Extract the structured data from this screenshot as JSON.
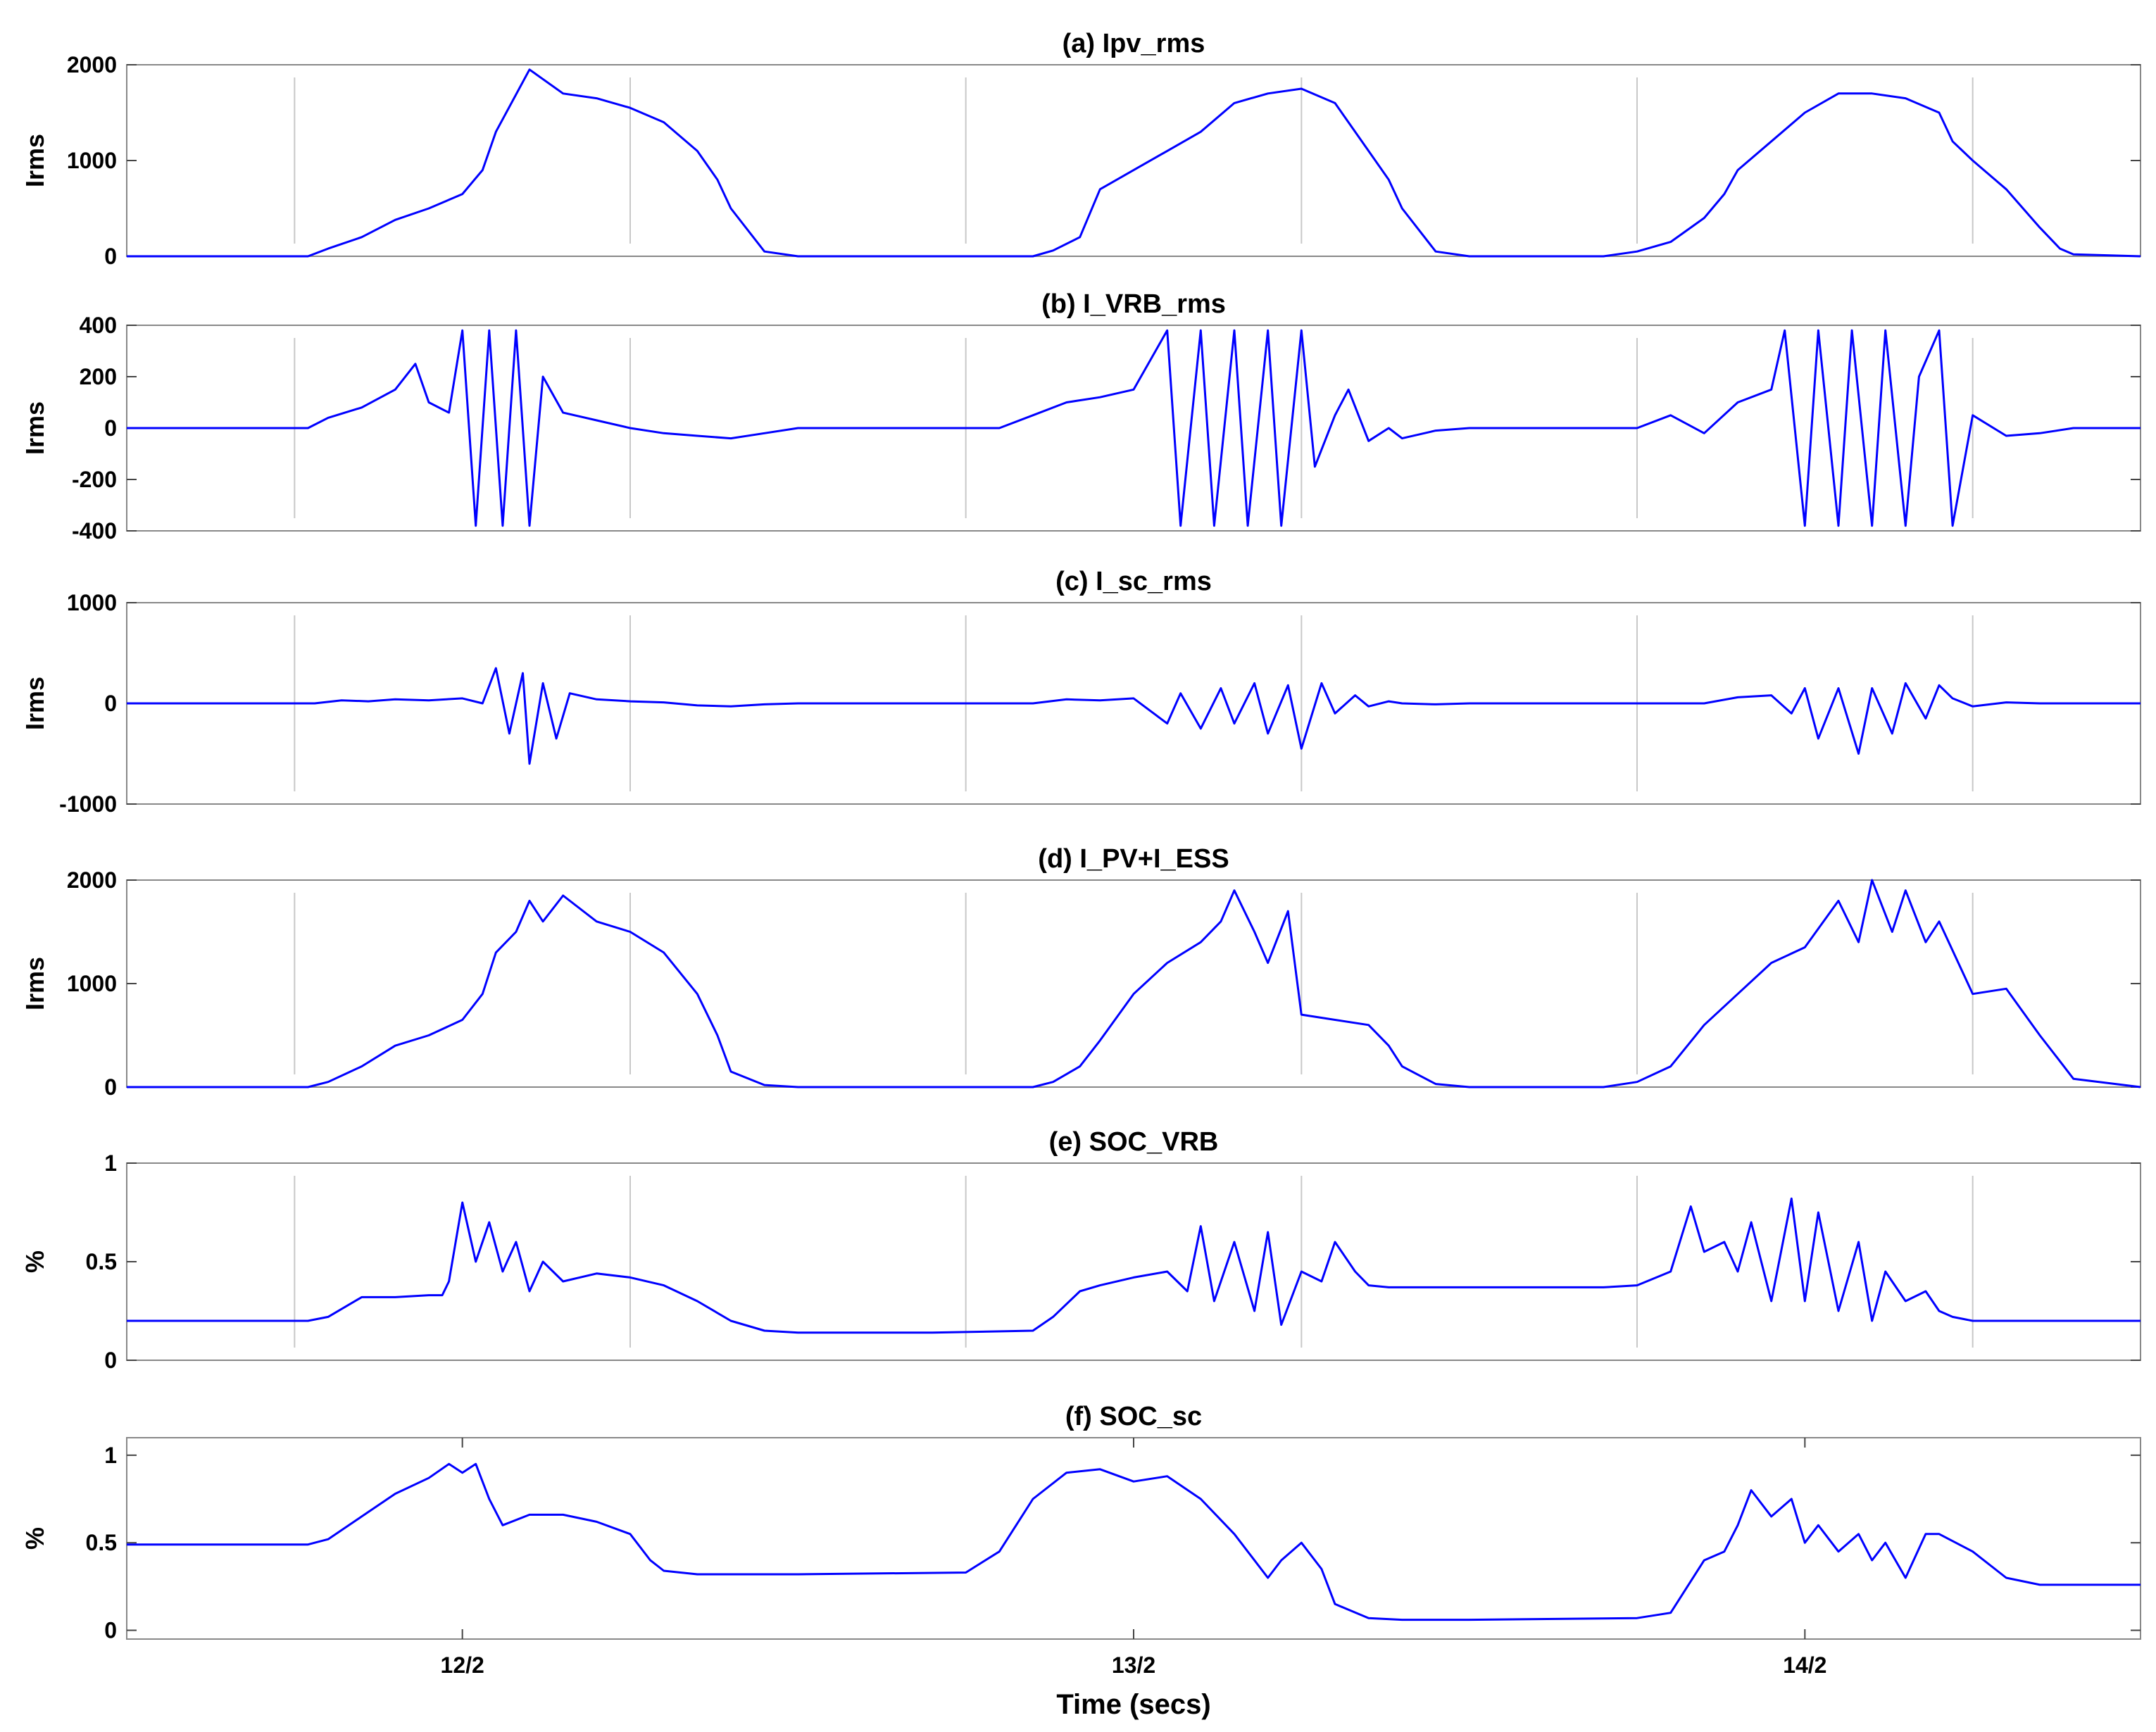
{
  "chart_data": [
    {
      "type": "line",
      "title": "(a) Ipv_rms",
      "ylabel": "Irms",
      "ylim": [
        0,
        2000
      ],
      "yticks": [
        "0",
        "1000",
        "2000"
      ],
      "xlim": [
        0,
        3
      ],
      "grid_x": [
        0.25,
        0.75,
        1.25,
        1.75,
        2.25,
        2.75
      ],
      "color": "#0000ff",
      "series": [
        {
          "x": [
            0,
            0.27,
            0.3,
            0.35,
            0.4,
            0.45,
            0.5,
            0.53,
            0.55,
            0.6,
            0.65,
            0.7,
            0.75,
            0.8,
            0.85,
            0.88,
            0.9,
            0.95,
            1.0,
            1.35,
            1.38,
            1.42,
            1.45,
            1.5,
            1.55,
            1.6,
            1.65,
            1.7,
            1.75,
            1.8,
            1.85,
            1.88,
            1.9,
            1.95,
            2.0,
            2.2,
            2.25,
            2.3,
            2.35,
            2.38,
            2.4,
            2.45,
            2.5,
            2.55,
            2.6,
            2.65,
            2.7,
            2.72,
            2.75,
            2.8,
            2.85,
            2.88,
            2.9,
            3.0
          ],
          "y": [
            0,
            0,
            80,
            200,
            380,
            500,
            650,
            900,
            1300,
            1950,
            1700,
            1650,
            1550,
            1400,
            1100,
            800,
            500,
            50,
            0,
            0,
            60,
            200,
            700,
            900,
            1100,
            1300,
            1600,
            1700,
            1750,
            1600,
            1100,
            800,
            500,
            50,
            0,
            0,
            50,
            150,
            400,
            650,
            900,
            1200,
            1500,
            1700,
            1700,
            1650,
            1500,
            1200,
            1000,
            700,
            300,
            80,
            20,
            0
          ]
        }
      ]
    },
    {
      "type": "line",
      "title": "(b) I_VRB_rms",
      "ylabel": "Irms",
      "ylim": [
        -400,
        400
      ],
      "yticks": [
        "-400",
        "-200",
        "0",
        "200",
        "400"
      ],
      "xlim": [
        0,
        3
      ],
      "grid_x": [
        0.25,
        0.75,
        1.25,
        1.75,
        2.25,
        2.75
      ],
      "color": "#0000ff",
      "series": [
        {
          "x": [
            0,
            0.27,
            0.3,
            0.35,
            0.4,
            0.43,
            0.45,
            0.48,
            0.5,
            0.52,
            0.54,
            0.56,
            0.58,
            0.6,
            0.62,
            0.65,
            0.7,
            0.75,
            0.8,
            0.85,
            0.9,
            0.95,
            1.0,
            1.3,
            1.35,
            1.4,
            1.45,
            1.5,
            1.55,
            1.57,
            1.6,
            1.62,
            1.65,
            1.67,
            1.7,
            1.72,
            1.75,
            1.77,
            1.8,
            1.82,
            1.85,
            1.88,
            1.9,
            1.95,
            2.0,
            2.25,
            2.3,
            2.35,
            2.4,
            2.45,
            2.47,
            2.5,
            2.52,
            2.55,
            2.57,
            2.6,
            2.62,
            2.65,
            2.67,
            2.7,
            2.72,
            2.75,
            2.8,
            2.85,
            2.9,
            3.0
          ],
          "y": [
            0,
            0,
            40,
            80,
            150,
            250,
            100,
            60,
            380,
            -380,
            380,
            -380,
            380,
            -380,
            200,
            60,
            30,
            0,
            -20,
            -30,
            -40,
            -20,
            0,
            0,
            50,
            100,
            120,
            150,
            380,
            -380,
            380,
            -380,
            380,
            -380,
            380,
            -380,
            380,
            -150,
            50,
            150,
            -50,
            0,
            -40,
            -10,
            0,
            0,
            50,
            -20,
            100,
            150,
            380,
            -380,
            380,
            -380,
            380,
            -380,
            380,
            -380,
            200,
            380,
            -380,
            50,
            -30,
            -20,
            0,
            0
          ]
        }
      ]
    },
    {
      "type": "line",
      "title": "(c) I_sc_rms",
      "ylabel": "Irms",
      "ylim": [
        -1000,
        1000
      ],
      "yticks": [
        "-1000",
        "0",
        "1000"
      ],
      "xlim": [
        0,
        3
      ],
      "grid_x": [
        0.25,
        0.75,
        1.25,
        1.75,
        2.25,
        2.75
      ],
      "color": "#0000ff",
      "series": [
        {
          "x": [
            0,
            0.28,
            0.32,
            0.36,
            0.4,
            0.45,
            0.5,
            0.53,
            0.55,
            0.57,
            0.59,
            0.6,
            0.62,
            0.64,
            0.66,
            0.7,
            0.75,
            0.8,
            0.85,
            0.9,
            0.95,
            1.0,
            1.35,
            1.4,
            1.45,
            1.5,
            1.55,
            1.57,
            1.6,
            1.63,
            1.65,
            1.68,
            1.7,
            1.73,
            1.75,
            1.78,
            1.8,
            1.83,
            1.85,
            1.88,
            1.9,
            1.95,
            2.0,
            2.35,
            2.4,
            2.45,
            2.48,
            2.5,
            2.52,
            2.55,
            2.58,
            2.6,
            2.63,
            2.65,
            2.68,
            2.7,
            2.72,
            2.75,
            2.8,
            2.85,
            2.9,
            3.0
          ],
          "y": [
            0,
            0,
            30,
            20,
            40,
            30,
            50,
            0,
            350,
            -300,
            300,
            -600,
            200,
            -350,
            100,
            40,
            20,
            10,
            -20,
            -30,
            -10,
            0,
            0,
            40,
            30,
            50,
            -200,
            100,
            -250,
            150,
            -200,
            200,
            -300,
            180,
            -450,
            200,
            -100,
            80,
            -30,
            20,
            0,
            -10,
            0,
            0,
            60,
            80,
            -100,
            150,
            -350,
            150,
            -500,
            150,
            -300,
            200,
            -150,
            180,
            50,
            -30,
            10,
            0,
            0,
            0
          ]
        }
      ]
    },
    {
      "type": "line",
      "title": "(d) I_PV+I_ESS",
      "ylabel": "Irms",
      "ylim": [
        0,
        2000
      ],
      "yticks": [
        "0",
        "1000",
        "2000"
      ],
      "xlim": [
        0,
        3
      ],
      "grid_x": [
        0.25,
        0.75,
        1.25,
        1.75,
        2.25,
        2.75
      ],
      "color": "#0000ff",
      "series": [
        {
          "x": [
            0,
            0.27,
            0.3,
            0.35,
            0.4,
            0.45,
            0.5,
            0.53,
            0.55,
            0.58,
            0.6,
            0.62,
            0.65,
            0.7,
            0.75,
            0.8,
            0.85,
            0.88,
            0.9,
            0.95,
            1.0,
            1.35,
            1.38,
            1.42,
            1.45,
            1.5,
            1.55,
            1.6,
            1.63,
            1.65,
            1.68,
            1.7,
            1.73,
            1.75,
            1.8,
            1.85,
            1.88,
            1.9,
            1.95,
            2.0,
            2.2,
            2.25,
            2.3,
            2.35,
            2.4,
            2.45,
            2.5,
            2.55,
            2.58,
            2.6,
            2.63,
            2.65,
            2.68,
            2.7,
            2.75,
            2.8,
            2.85,
            2.88,
            2.9,
            3.0
          ],
          "y": [
            0,
            0,
            50,
            200,
            400,
            500,
            650,
            900,
            1300,
            1500,
            1800,
            1600,
            1850,
            1600,
            1500,
            1300,
            900,
            500,
            150,
            20,
            0,
            0,
            50,
            200,
            450,
            900,
            1200,
            1400,
            1600,
            1900,
            1500,
            1200,
            1700,
            700,
            650,
            600,
            400,
            200,
            30,
            0,
            0,
            50,
            200,
            600,
            900,
            1200,
            1350,
            1800,
            1400,
            2000,
            1500,
            1900,
            1400,
            1600,
            900,
            950,
            500,
            250,
            80,
            0
          ]
        }
      ]
    },
    {
      "type": "line",
      "title": "(e) SOC_VRB",
      "ylabel": "%",
      "ylim": [
        0,
        1
      ],
      "yticks": [
        "0",
        "0.5",
        "1"
      ],
      "xlim": [
        0,
        3
      ],
      "grid_x": [
        0.25,
        0.75,
        1.25,
        1.75,
        2.25,
        2.75
      ],
      "color": "#0000ff",
      "series": [
        {
          "x": [
            0,
            0.27,
            0.3,
            0.35,
            0.4,
            0.45,
            0.47,
            0.48,
            0.5,
            0.52,
            0.54,
            0.56,
            0.58,
            0.6,
            0.62,
            0.65,
            0.7,
            0.75,
            0.8,
            0.85,
            0.9,
            0.95,
            1.0,
            1.2,
            1.35,
            1.38,
            1.42,
            1.45,
            1.5,
            1.55,
            1.58,
            1.6,
            1.62,
            1.65,
            1.68,
            1.7,
            1.72,
            1.75,
            1.78,
            1.8,
            1.83,
            1.85,
            1.88,
            1.9,
            1.95,
            2.0,
            2.2,
            2.25,
            2.3,
            2.33,
            2.35,
            2.38,
            2.4,
            2.42,
            2.45,
            2.48,
            2.5,
            2.52,
            2.55,
            2.58,
            2.6,
            2.62,
            2.65,
            2.68,
            2.7,
            2.72,
            2.75,
            2.8,
            2.85,
            2.9,
            3.0
          ],
          "y": [
            0.2,
            0.2,
            0.22,
            0.32,
            0.32,
            0.33,
            0.33,
            0.4,
            0.8,
            0.5,
            0.7,
            0.45,
            0.6,
            0.35,
            0.5,
            0.4,
            0.44,
            0.42,
            0.38,
            0.3,
            0.2,
            0.15,
            0.14,
            0.14,
            0.15,
            0.22,
            0.35,
            0.38,
            0.42,
            0.45,
            0.35,
            0.68,
            0.3,
            0.6,
            0.25,
            0.65,
            0.18,
            0.45,
            0.4,
            0.6,
            0.45,
            0.38,
            0.37,
            0.37,
            0.37,
            0.37,
            0.37,
            0.38,
            0.45,
            0.78,
            0.55,
            0.6,
            0.45,
            0.7,
            0.3,
            0.82,
            0.3,
            0.75,
            0.25,
            0.6,
            0.2,
            0.45,
            0.3,
            0.35,
            0.25,
            0.22,
            0.2,
            0.2,
            0.2,
            0.2,
            0.2
          ]
        }
      ]
    },
    {
      "type": "line",
      "title": "(f) SOC_sc",
      "ylabel": "%",
      "ylim": [
        -0.05,
        1.1
      ],
      "yticks": [
        "0",
        "0.5",
        "1"
      ],
      "xlim": [
        0,
        3
      ],
      "xticks": [
        0.5,
        1.5,
        2.5
      ],
      "xticklabels": [
        "12/2",
        "13/2",
        "14/2"
      ],
      "xlabel": "Time (secs)",
      "grid_x": [],
      "color": "#0000ff",
      "series": [
        {
          "x": [
            0,
            0.27,
            0.3,
            0.35,
            0.4,
            0.45,
            0.48,
            0.5,
            0.52,
            0.54,
            0.56,
            0.6,
            0.65,
            0.7,
            0.75,
            0.78,
            0.8,
            0.85,
            0.9,
            1.0,
            1.25,
            1.3,
            1.35,
            1.4,
            1.45,
            1.5,
            1.55,
            1.6,
            1.65,
            1.7,
            1.72,
            1.75,
            1.78,
            1.8,
            1.85,
            1.9,
            2.0,
            2.25,
            2.3,
            2.35,
            2.38,
            2.4,
            2.42,
            2.45,
            2.48,
            2.5,
            2.52,
            2.55,
            2.58,
            2.6,
            2.62,
            2.65,
            2.68,
            2.7,
            2.75,
            2.8,
            2.85,
            3.0
          ],
          "y": [
            0.49,
            0.49,
            0.52,
            0.65,
            0.78,
            0.87,
            0.95,
            0.9,
            0.95,
            0.75,
            0.6,
            0.66,
            0.66,
            0.62,
            0.55,
            0.4,
            0.34,
            0.32,
            0.32,
            0.32,
            0.33,
            0.45,
            0.75,
            0.9,
            0.92,
            0.85,
            0.88,
            0.75,
            0.55,
            0.3,
            0.4,
            0.5,
            0.35,
            0.15,
            0.07,
            0.06,
            0.06,
            0.07,
            0.1,
            0.4,
            0.45,
            0.6,
            0.8,
            0.65,
            0.75,
            0.5,
            0.6,
            0.45,
            0.55,
            0.4,
            0.5,
            0.3,
            0.55,
            0.55,
            0.45,
            0.3,
            0.26,
            0.26
          ]
        }
      ]
    }
  ]
}
